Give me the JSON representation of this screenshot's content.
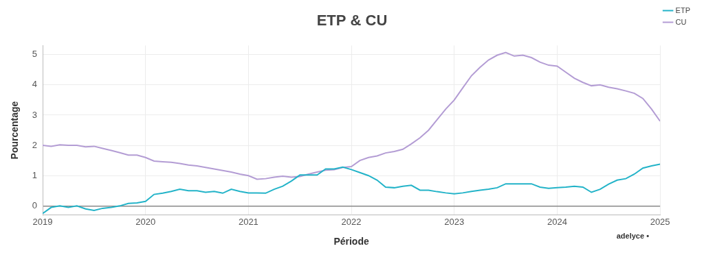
{
  "chart_data": {
    "type": "line",
    "title": "ETP & CU",
    "x_label": "Période",
    "y_label": "Pourcentage",
    "annotation": "adelyce •",
    "legend": "top right",
    "grid": true,
    "x": [
      2019,
      2019.083,
      2019.167,
      2019.25,
      2019.333,
      2019.417,
      2019.5,
      2019.583,
      2019.667,
      2019.75,
      2019.833,
      2019.917,
      2020,
      2020.083,
      2020.167,
      2020.25,
      2020.333,
      2020.417,
      2020.5,
      2020.583,
      2020.667,
      2020.75,
      2020.833,
      2020.917,
      2021,
      2021.083,
      2021.167,
      2021.25,
      2021.333,
      2021.417,
      2021.5,
      2021.583,
      2021.667,
      2021.75,
      2021.833,
      2021.917,
      2022,
      2022.083,
      2022.167,
      2022.25,
      2022.333,
      2022.417,
      2022.5,
      2022.583,
      2022.667,
      2022.75,
      2022.833,
      2022.917,
      2023,
      2023.083,
      2023.167,
      2023.25,
      2023.333,
      2023.417,
      2023.5,
      2023.583,
      2023.667,
      2023.75,
      2023.833,
      2023.917,
      2024,
      2024.083,
      2024.167,
      2024.25,
      2024.333,
      2024.417,
      2024.5,
      2024.583,
      2024.667,
      2024.75,
      2024.833,
      2024.917,
      2025
    ],
    "series": [
      {
        "name": "ETP",
        "color": "#22b3c8",
        "values": [
          -0.25,
          -0.05,
          0,
          -0.05,
          0,
          -0.1,
          -0.15,
          -0.08,
          -0.05,
          0,
          0.08,
          0.1,
          0.15,
          0.38,
          0.42,
          0.48,
          0.55,
          0.5,
          0.5,
          0.45,
          0.48,
          0.42,
          0.55,
          0.48,
          0.43,
          0.43,
          0.42,
          0.55,
          0.65,
          0.82,
          1.02,
          1.02,
          1.02,
          1.22,
          1.22,
          1.28,
          1.2,
          1.1,
          1.0,
          0.85,
          0.62,
          0.6,
          0.65,
          0.68,
          0.52,
          0.52,
          0.47,
          0.43,
          0.4,
          0.43,
          0.48,
          0.52,
          0.55,
          0.6,
          0.73,
          0.73,
          0.73,
          0.73,
          0.62,
          0.58,
          0.6,
          0.62,
          0.65,
          0.62,
          0.45,
          0.55,
          0.72,
          0.85,
          0.9,
          1.05,
          1.25,
          1.32,
          1.38
        ]
      },
      {
        "name": "CU",
        "color": "#b39cd4",
        "values": [
          2.0,
          1.97,
          2.02,
          2.0,
          2.0,
          1.95,
          1.97,
          1.9,
          1.83,
          1.76,
          1.68,
          1.68,
          1.6,
          1.48,
          1.46,
          1.44,
          1.4,
          1.35,
          1.32,
          1.27,
          1.22,
          1.17,
          1.12,
          1.05,
          1.0,
          0.88,
          0.9,
          0.95,
          0.98,
          0.95,
          0.97,
          1.05,
          1.12,
          1.18,
          1.2,
          1.27,
          1.3,
          1.5,
          1.6,
          1.65,
          1.75,
          1.8,
          1.87,
          2.05,
          2.25,
          2.5,
          2.85,
          3.2,
          3.5,
          3.9,
          4.3,
          4.58,
          4.82,
          4.98,
          5.07,
          4.95,
          4.98,
          4.9,
          4.75,
          4.65,
          4.62,
          4.42,
          4.22,
          4.08,
          3.97,
          4.0,
          3.92,
          3.87,
          3.8,
          3.72,
          3.55,
          3.2,
          2.8
        ]
      }
    ],
    "xlim": [
      2019,
      2025
    ],
    "xticks": [
      2019,
      2020,
      2021,
      2022,
      2023,
      2024,
      2025
    ],
    "ylim": [
      -0.3,
      5.3
    ],
    "yticks": [
      0,
      1,
      2,
      3,
      4,
      5
    ]
  }
}
